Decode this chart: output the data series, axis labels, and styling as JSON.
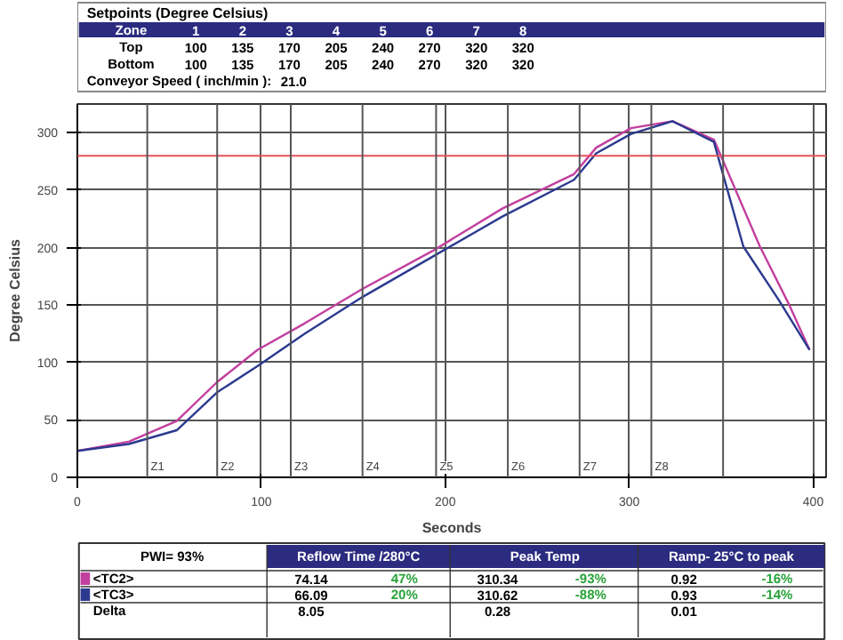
{
  "chart_data": {
    "type": "line",
    "title": "Setpoints (Degree Celsius)",
    "xlabel": "Seconds",
    "ylabel": "Degree Celsius",
    "xlim": [
      0,
      407
    ],
    "ylim": [
      0,
      325
    ],
    "xticks": [
      0,
      100,
      200,
      300,
      400
    ],
    "yticks": [
      0,
      50,
      100,
      150,
      200,
      250,
      300
    ],
    "grid": true,
    "line_style": "solid",
    "legend": "bottom left",
    "series": [
      {
        "name": "<TC2>",
        "color": "#c23f9e",
        "x": [
          0,
          28,
          54,
          76,
          98,
          123.5,
          155,
          193,
          231,
          270,
          282,
          301,
          323.5,
          346,
          371,
          387,
          398
        ],
        "values": [
          23,
          31,
          49,
          83,
          111,
          134,
          164,
          197,
          234,
          264,
          287,
          304,
          310,
          294,
          201,
          150,
          111
        ]
      },
      {
        "name": "<TC3>",
        "color": "#2b3a8f",
        "x": [
          0,
          28,
          54,
          76,
          98,
          123.5,
          155,
          193,
          231,
          270,
          282,
          301,
          323.5,
          346,
          362,
          381,
          398
        ],
        "values": [
          23,
          29,
          41,
          74,
          97,
          125,
          157,
          192,
          227,
          259,
          282,
          299,
          310,
          292,
          201,
          155,
          111
        ]
      }
    ],
    "ref_lines": [
      {
        "axis": "y",
        "value": 280,
        "label": null,
        "color": "#e8505a"
      },
      {
        "axis": "x",
        "value": 38,
        "label": "Z1",
        "color": "#555555"
      },
      {
        "axis": "x",
        "value": 76,
        "label": "Z2",
        "color": "#555555"
      },
      {
        "axis": "x",
        "value": 116,
        "label": "Z3",
        "color": "#555555"
      },
      {
        "axis": "x",
        "value": 155,
        "label": "Z4",
        "color": "#555555"
      },
      {
        "axis": "x",
        "value": 195,
        "label": "Z5",
        "color": "#555555"
      },
      {
        "axis": "x",
        "value": 234,
        "label": "Z6",
        "color": "#555555"
      },
      {
        "axis": "x",
        "value": 273,
        "label": "Z7",
        "color": "#555555"
      },
      {
        "axis": "x",
        "value": 312,
        "label": "Z8",
        "color": "#555555"
      },
      {
        "axis": "x",
        "value": 351,
        "label": null,
        "color": "#555555"
      }
    ],
    "annotations": [
      "Zone",
      "1",
      "2",
      "3",
      "4",
      "5",
      "6",
      "7",
      "8",
      "Top",
      "100",
      "135",
      "170",
      "205",
      "240",
      "270",
      "320",
      "320",
      "Bottom",
      "100",
      "135",
      "170",
      "205",
      "240",
      "270",
      "320",
      "320",
      "Conveyor Speed ( inch/min ):",
      "21.0",
      "PWI= 93%",
      "Reflow Time /280°C",
      "Peak Temp",
      "Ramp- 25°C to peak",
      "74.14",
      "47%",
      "310.34",
      "-93%",
      "0.92",
      "-16%",
      "66.09",
      "20%",
      "310.62",
      "-88%",
      "0.93",
      "-14%",
      "Delta",
      "8.05",
      "0.28",
      "0.01"
    ]
  }
}
